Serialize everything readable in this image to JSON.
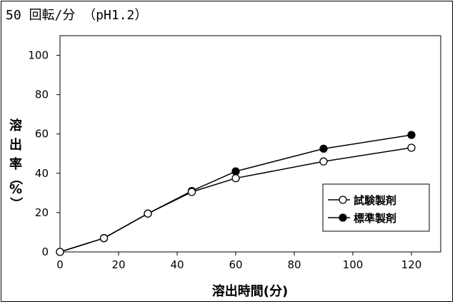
{
  "chart_data": {
    "type": "line",
    "title": "50 回転/分 （pH1.2）",
    "xlabel": "溶出時間(分)",
    "ylabel_chars": [
      "溶",
      "出",
      "率",
      "（",
      "%",
      "）"
    ],
    "x": [
      0,
      15,
      30,
      45,
      60,
      90,
      120
    ],
    "xlim": [
      0,
      130
    ],
    "ylim": [
      0,
      110
    ],
    "xticks": [
      0,
      20,
      40,
      60,
      80,
      100,
      120
    ],
    "yticks": [
      0,
      20,
      40,
      60,
      80,
      100
    ],
    "grid": false,
    "legend_position": "right",
    "series": [
      {
        "name": "試験製剤",
        "marker": "open-circle",
        "values": [
          0,
          7,
          19.5,
          30.5,
          37.5,
          46,
          53
        ]
      },
      {
        "name": "標準製剤",
        "marker": "filled-circle",
        "values": [
          0,
          7,
          19.5,
          31,
          41,
          52.5,
          59.5
        ]
      }
    ]
  }
}
